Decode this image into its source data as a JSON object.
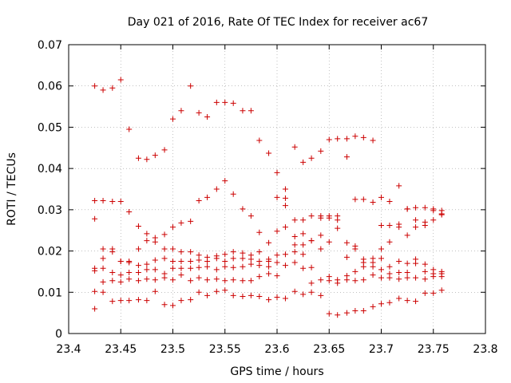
{
  "chart_data": {
    "type": "scatter",
    "title": "Day 021 of 2016, Rate Of TEC Index for receiver ac67",
    "xlabel": "GPS time / hours",
    "ylabel": "ROTI / TECUs",
    "xlim": [
      23.4,
      23.8
    ],
    "ylim": [
      0,
      0.07
    ],
    "xticks": [
      "23.4",
      "23.45",
      "23.5",
      "23.55",
      "23.6",
      "23.65",
      "23.7",
      "23.75",
      "23.8"
    ],
    "yticks": [
      "0",
      "0.01",
      "0.02",
      "0.03",
      "0.04",
      "0.05",
      "0.06",
      "0.07"
    ],
    "grid": true,
    "marker": "+",
    "color": "#cc0000",
    "series": [
      {
        "x": [
          23.425,
          23.433,
          23.442,
          23.45,
          23.458,
          23.467,
          23.475,
          23.483,
          23.492,
          23.5,
          23.508,
          23.517,
          23.525,
          23.533,
          23.542,
          23.55,
          23.558,
          23.567,
          23.575,
          23.583,
          23.592,
          23.6,
          23.608,
          23.617,
          23.625,
          23.633,
          23.642,
          23.65,
          23.658,
          23.667,
          23.675,
          23.683,
          23.692,
          23.7,
          23.708,
          23.717,
          23.725,
          23.733,
          23.742,
          23.75,
          23.758,
          23.425,
          23.433,
          23.442,
          23.45,
          23.458,
          23.467,
          23.475,
          23.483,
          23.492,
          23.5,
          23.508,
          23.517,
          23.525,
          23.533,
          23.542,
          23.55,
          23.558,
          23.567,
          23.575,
          23.583,
          23.592,
          23.6,
          23.608,
          23.617,
          23.625,
          23.633,
          23.642,
          23.65,
          23.658,
          23.667,
          23.675,
          23.683,
          23.692,
          23.7,
          23.708,
          23.717,
          23.725,
          23.733,
          23.742,
          23.75,
          23.758,
          23.425,
          23.433,
          23.442,
          23.45,
          23.458,
          23.467,
          23.475,
          23.483,
          23.492,
          23.5,
          23.508,
          23.517,
          23.525,
          23.533,
          23.542,
          23.55,
          23.558,
          23.567,
          23.575,
          23.583,
          23.592,
          23.6,
          23.608,
          23.617,
          23.625,
          23.633,
          23.642,
          23.65,
          23.658,
          23.667,
          23.675,
          23.683,
          23.692,
          23.7,
          23.708,
          23.717,
          23.725,
          23.733,
          23.742,
          23.75,
          23.758,
          23.425,
          23.433,
          23.442,
          23.45,
          23.458,
          23.467,
          23.475,
          23.483,
          23.492,
          23.5,
          23.508,
          23.517,
          23.525,
          23.533,
          23.542,
          23.55,
          23.558,
          23.567,
          23.575,
          23.583,
          23.592,
          23.6,
          23.608,
          23.617,
          23.625,
          23.633,
          23.642,
          23.65,
          23.658,
          23.667,
          23.675,
          23.683,
          23.692,
          23.7,
          23.708,
          23.717,
          23.725,
          23.733,
          23.742,
          23.75,
          23.758,
          23.425,
          23.433,
          23.442,
          23.45,
          23.458,
          23.467,
          23.475,
          23.483,
          23.492,
          23.5,
          23.508,
          23.517,
          23.525,
          23.533,
          23.542,
          23.55,
          23.558,
          23.567,
          23.575,
          23.583,
          23.592,
          23.6,
          23.608,
          23.617,
          23.625,
          23.633,
          23.642,
          23.65,
          23.658,
          23.667,
          23.675,
          23.683,
          23.692,
          23.7,
          23.708,
          23.717,
          23.725,
          23.733,
          23.742,
          23.75,
          23.758,
          23.425,
          23.433,
          23.442,
          23.45,
          23.458,
          23.467,
          23.475,
          23.483,
          23.492,
          23.5,
          23.508,
          23.517,
          23.525,
          23.533,
          23.542,
          23.55,
          23.558,
          23.567,
          23.575,
          23.583,
          23.592,
          23.6,
          23.608,
          23.617,
          23.625,
          23.633,
          23.642,
          23.65,
          23.658,
          23.667,
          23.675,
          23.683,
          23.692,
          23.7,
          23.708,
          23.717,
          23.725,
          23.733,
          23.742,
          23.75,
          23.758,
          23.425,
          23.433,
          23.442,
          23.45,
          23.458,
          23.467,
          23.475,
          23.483,
          23.492,
          23.5,
          23.508,
          23.517,
          23.525,
          23.533,
          23.542,
          23.55,
          23.558,
          23.567,
          23.575,
          23.583,
          23.592,
          23.6,
          23.608,
          23.617,
          23.625,
          23.633,
          23.642,
          23.65,
          23.658,
          23.667,
          23.675,
          23.683,
          23.692,
          23.7,
          23.708,
          23.717,
          23.725,
          23.733,
          23.742,
          23.75,
          23.758
        ],
        "y": [
          0.06,
          0.059,
          0.0595,
          0.0615,
          0.0495,
          0.0425,
          0.0422,
          0.0432,
          0.0445,
          0.052,
          0.054,
          0.06,
          0.0535,
          0.0525,
          0.056,
          0.056,
          0.0558,
          0.054,
          0.054,
          0.0468,
          0.0437,
          0.039,
          0.035,
          0.0452,
          0.0415,
          0.0425,
          0.0442,
          0.047,
          0.0472,
          0.0472,
          0.0478,
          0.0475,
          0.0468,
          0.033,
          0.032,
          0.0358,
          0.0302,
          0.0305,
          0.0305,
          0.0302,
          0.0298,
          0.0322,
          0.0322,
          0.032,
          0.032,
          0.0295,
          0.026,
          0.0242,
          0.0232,
          0.024,
          0.0258,
          0.0268,
          0.0272,
          0.0322,
          0.033,
          0.035,
          0.037,
          0.0338,
          0.0302,
          0.0285,
          0.0245,
          0.022,
          0.033,
          0.0328,
          0.0275,
          0.0275,
          0.0285,
          0.0285,
          0.0285,
          0.0275,
          0.0428,
          0.0325,
          0.0325,
          0.0318,
          0.0262,
          0.0262,
          0.0265,
          0.0302,
          0.0275,
          0.027,
          0.0275,
          0.029,
          0.0278,
          0.0205,
          0.0205,
          0.0175,
          0.0175,
          0.0205,
          0.0225,
          0.0222,
          0.0205,
          0.0205,
          0.0198,
          0.0198,
          0.019,
          0.0185,
          0.0188,
          0.0192,
          0.0198,
          0.0195,
          0.019,
          0.0198,
          0.018,
          0.0248,
          0.031,
          0.0235,
          0.0242,
          0.0225,
          0.0238,
          0.028,
          0.0285,
          0.022,
          0.0212,
          0.018,
          0.0182,
          0.0205,
          0.0222,
          0.0258,
          0.0238,
          0.0258,
          0.0262,
          0.0298,
          0.0288,
          0.0158,
          0.0182,
          0.0198,
          0.0175,
          0.0172,
          0.0165,
          0.0168,
          0.0178,
          0.0182,
          0.0175,
          0.0175,
          0.0175,
          0.0178,
          0.0175,
          0.0182,
          0.0175,
          0.0182,
          0.0182,
          0.018,
          0.0175,
          0.0175,
          0.019,
          0.0258,
          0.0215,
          0.0215,
          0.0225,
          0.028,
          0.0222,
          0.0255,
          0.0185,
          0.0205,
          0.0172,
          0.0172,
          0.0182,
          0.0162,
          0.0175,
          0.017,
          0.018,
          0.0168,
          0.0155,
          0.015,
          0.0152,
          0.0158,
          0.0148,
          0.0142,
          0.0148,
          0.0148,
          0.0155,
          0.0155,
          0.0145,
          0.0158,
          0.0158,
          0.0158,
          0.016,
          0.0162,
          0.0155,
          0.0162,
          0.016,
          0.0162,
          0.0168,
          0.0165,
          0.0162,
          0.0172,
          0.0192,
          0.0198,
          0.0192,
          0.016,
          0.0205,
          0.0138,
          0.013,
          0.014,
          0.015,
          0.0162,
          0.0162,
          0.0155,
          0.0145,
          0.0148,
          0.0148,
          0.017,
          0.015,
          0.0145,
          0.0145,
          0.0102,
          0.0125,
          0.0128,
          0.0125,
          0.0132,
          0.0128,
          0.0132,
          0.013,
          0.0135,
          0.013,
          0.0142,
          0.0128,
          0.0135,
          0.013,
          0.0132,
          0.0128,
          0.013,
          0.0128,
          0.0128,
          0.0138,
          0.0145,
          0.014,
          0.0165,
          0.0172,
          0.0158,
          0.0122,
          0.013,
          0.0128,
          0.0122,
          0.013,
          0.0128,
          0.013,
          0.0142,
          0.0135,
          0.0135,
          0.0132,
          0.0135,
          0.0135,
          0.0132,
          0.0138,
          0.0138,
          0.006,
          0.01,
          0.0078,
          0.008,
          0.008,
          0.0082,
          0.008,
          0.0102,
          0.007,
          0.0068,
          0.008,
          0.0082,
          0.01,
          0.0092,
          0.0102,
          0.0105,
          0.0092,
          0.009,
          0.0092,
          0.009,
          0.0082,
          0.0088,
          0.0085,
          0.0102,
          0.0095,
          0.01,
          0.0092,
          0.0048,
          0.0045,
          0.005,
          0.0055,
          0.0055,
          0.0065,
          0.0072,
          0.0075,
          0.0085,
          0.008,
          0.0078,
          0.0098,
          0.0098,
          0.0105
        ]
      }
    ]
  }
}
